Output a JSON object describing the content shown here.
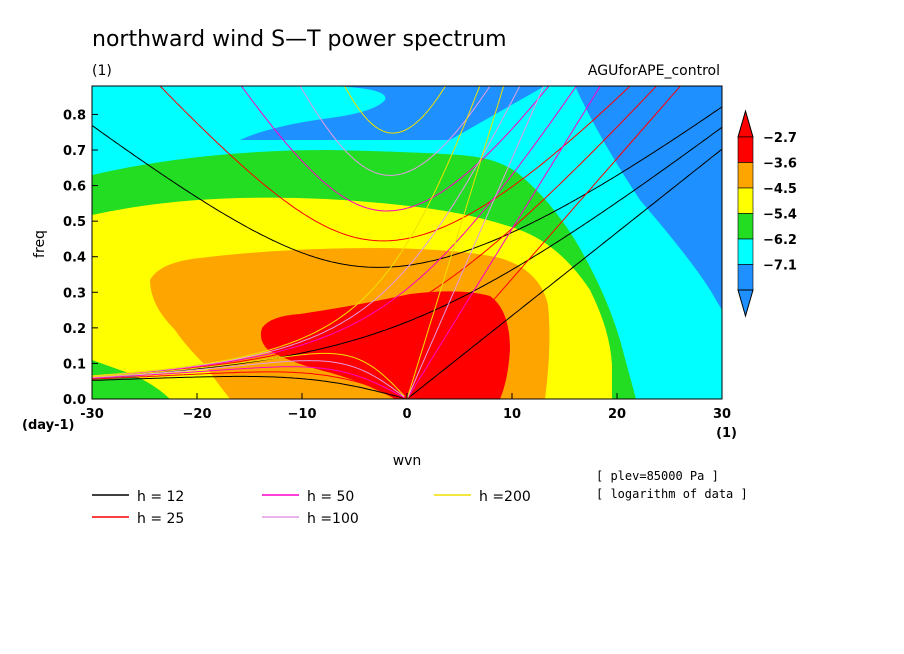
{
  "chart_data": {
    "type": "heatmap",
    "title": "northward wind S—T power spectrum",
    "subtitle_left": "(1)",
    "subtitle_right": "AGUforAPE_control",
    "xlabel": "wvn",
    "ylabel": "freq",
    "x_unit": "(1)",
    "y_unit": "(day-1)",
    "xlim": [
      -30,
      30
    ],
    "ylim": [
      0.0,
      0.88
    ],
    "x_ticks": [
      -30,
      -20,
      -10,
      0,
      10,
      20,
      30
    ],
    "x_tick_labels": [
      "-30",
      "−20",
      "−10",
      "0",
      "10",
      "20",
      "30"
    ],
    "y_ticks": [
      0.0,
      0.1,
      0.2,
      0.3,
      0.4,
      0.5,
      0.6,
      0.7,
      0.8
    ],
    "y_tick_labels": [
      "0.0",
      "0.1",
      "0.2",
      "0.3",
      "0.4",
      "0.5",
      "0.6",
      "0.7",
      "0.8"
    ],
    "colorbar": {
      "levels": [
        "−2.7",
        "−3.6",
        "−4.5",
        "−5.4",
        "−6.2",
        "−7.1"
      ],
      "colors": [
        "#ff0000",
        "#ffa500",
        "#ffff00",
        "#22dd22",
        "#00ffff",
        "#1e90ff"
      ]
    },
    "contour_bands": [
      {
        "level": "<-7.1",
        "color": "#1e90ff"
      },
      {
        "level": "-7.1",
        "color": "#00ffff"
      },
      {
        "level": "-6.2",
        "color": "#22dd22"
      },
      {
        "level": "-5.4",
        "color": "#ffff00"
      },
      {
        "level": "-4.5",
        "color": "#ffa500"
      },
      {
        "level": "-3.6",
        "color": "#ff0000"
      }
    ],
    "dispersion_curves": [
      {
        "label": "h = 12",
        "h": 12,
        "color": "#000000"
      },
      {
        "label": "h = 25",
        "h": 25,
        "color": "#ff0000"
      },
      {
        "label": "h = 50",
        "h": 50,
        "color": "#ff00c8"
      },
      {
        "label": "h =100",
        "h": 100,
        "color": "#e49be4"
      },
      {
        "label": "h =200",
        "h": 200,
        "color": "#f0e000"
      }
    ],
    "notes": [
      "[ plev=85000 Pa ]",
      "[ logarithm of data ]"
    ]
  }
}
